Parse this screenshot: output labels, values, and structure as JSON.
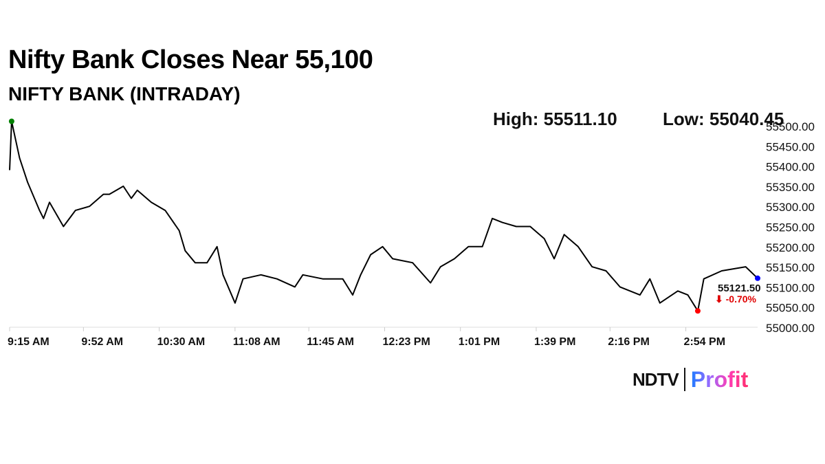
{
  "headline": "Nifty Bank Closes Near 55,100",
  "chart_data": {
    "type": "line",
    "title": "NIFTY BANK (INTRADAY)",
    "high_label": "High: 55511.10",
    "low_label": "Low: 55040.45",
    "last_value_label": "55121.50",
    "change_label": "⬇ -0.70%",
    "ylim": [
      55000,
      55500
    ],
    "yticks": [
      "55000.00",
      "55050.00",
      "55100.00",
      "55150.00",
      "55200.00",
      "55250.00",
      "55300.00",
      "55350.00",
      "55400.00",
      "55450.00",
      "55500.00"
    ],
    "xlim": [
      "9:15",
      "15:30"
    ],
    "xticks": [
      {
        "t": "9:15",
        "label": "9:15 AM"
      },
      {
        "t": "9:52",
        "label": "9:52 AM"
      },
      {
        "t": "10:30",
        "label": "10:30 AM"
      },
      {
        "t": "11:08",
        "label": "11:08 AM"
      },
      {
        "t": "11:45",
        "label": "11:45 AM"
      },
      {
        "t": "12:23",
        "label": "12:23 PM"
      },
      {
        "t": "13:01",
        "label": "1:01 PM"
      },
      {
        "t": "13:39",
        "label": "1:39 PM"
      },
      {
        "t": "14:16",
        "label": "2:16 PM"
      },
      {
        "t": "14:54",
        "label": "2:54 PM"
      }
    ],
    "x": [
      "9:15",
      "9:16",
      "9:20",
      "9:24",
      "9:30",
      "9:32",
      "9:35",
      "9:42",
      "9:48",
      "9:55",
      "10:02",
      "10:05",
      "10:12",
      "10:16",
      "10:19",
      "10:26",
      "10:33",
      "10:40",
      "10:43",
      "10:48",
      "10:54",
      "10:59",
      "11:02",
      "11:08",
      "11:12",
      "11:21",
      "11:29",
      "11:38",
      "11:42",
      "11:52",
      "12:02",
      "12:07",
      "12:11",
      "12:16",
      "12:22",
      "12:27",
      "12:37",
      "12:46",
      "12:51",
      "12:58",
      "13:05",
      "13:12",
      "13:17",
      "13:22",
      "13:29",
      "13:36",
      "13:43",
      "13:48",
      "13:53",
      "14:00",
      "14:07",
      "14:14",
      "14:21",
      "14:31",
      "14:36",
      "14:41",
      "14:50",
      "14:55",
      "15:00",
      "15:03",
      "15:12",
      "15:24",
      "15:30"
    ],
    "values": [
      55390,
      55511.1,
      55420,
      55360,
      55290,
      55270,
      55310,
      55250,
      55290,
      55300,
      55330,
      55330,
      55350,
      55320,
      55340,
      55310,
      55290,
      55240,
      55190,
      55160,
      55160,
      55200,
      55130,
      55060,
      55120,
      55130,
      55120,
      55100,
      55130,
      55120,
      55120,
      55080,
      55130,
      55180,
      55200,
      55170,
      55160,
      55110,
      55150,
      55170,
      55200,
      55200,
      55270,
      55260,
      55250,
      55250,
      55220,
      55170,
      55230,
      55200,
      55150,
      55140,
      55100,
      55080,
      55120,
      55060,
      55090,
      55080,
      55040.45,
      55120,
      55140,
      55150,
      55121.5
    ],
    "colors": {
      "line": "#000000",
      "high_marker": "#008000",
      "low_marker": "#ff0000",
      "last_marker": "#0000ff",
      "change": "#e00000"
    }
  },
  "logo": {
    "left": "NDTV",
    "right": "Profit"
  }
}
